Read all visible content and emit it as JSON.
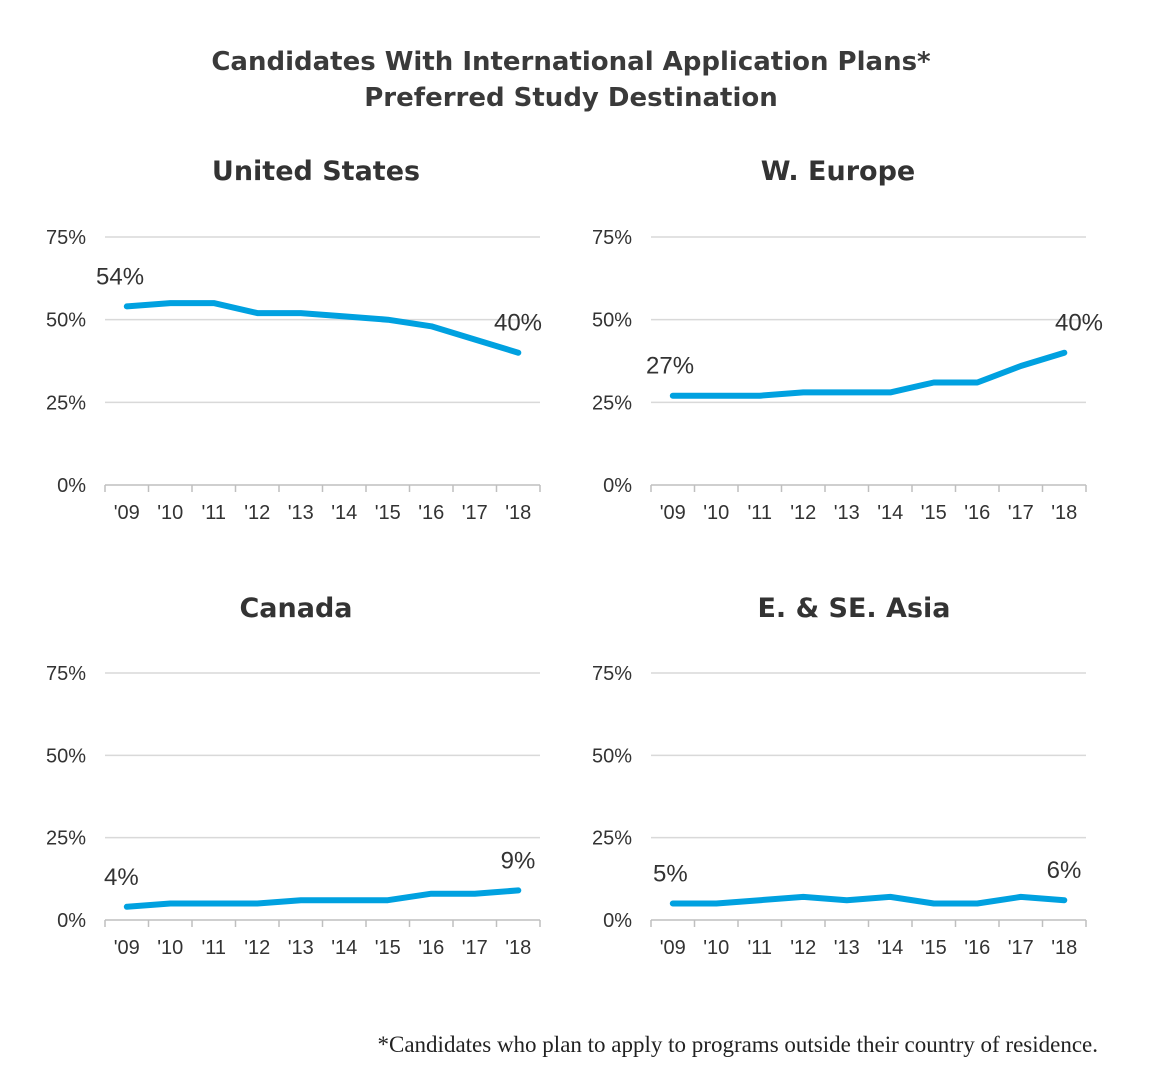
{
  "title": {
    "line1": "Candidates With International Application Plans*",
    "line2": "Preferred Study Destination"
  },
  "footnote": "*Candidates who plan to apply to programs outside their country of residence.",
  "colors": {
    "line": "#00a1e0"
  },
  "chart_data": [
    {
      "type": "line",
      "title": "United States",
      "categories": [
        "'09",
        "'10",
        "'11",
        "'12",
        "'13",
        "'14",
        "'15",
        "'16",
        "'17",
        "'18"
      ],
      "values": [
        54,
        55,
        55,
        52,
        52,
        51,
        50,
        48,
        44,
        40
      ],
      "yticks": [
        "0%",
        "25%",
        "50%",
        "75%"
      ],
      "ylim": [
        0,
        75
      ],
      "grid": true,
      "data_labels": {
        "first": "54%",
        "last": "40%"
      }
    },
    {
      "type": "line",
      "title": "W. Europe",
      "categories": [
        "'09",
        "'10",
        "'11",
        "'12",
        "'13",
        "'14",
        "'15",
        "'16",
        "'17",
        "'18"
      ],
      "values": [
        27,
        27,
        27,
        28,
        28,
        28,
        31,
        31,
        36,
        40
      ],
      "yticks": [
        "0%",
        "25%",
        "50%",
        "75%"
      ],
      "ylim": [
        0,
        75
      ],
      "grid": true,
      "data_labels": {
        "first": "27%",
        "last": "40%"
      }
    },
    {
      "type": "line",
      "title": "Canada",
      "categories": [
        "'09",
        "'10",
        "'11",
        "'12",
        "'13",
        "'14",
        "'15",
        "'16",
        "'17",
        "'18"
      ],
      "values": [
        4,
        5,
        5,
        5,
        6,
        6,
        6,
        8,
        8,
        9
      ],
      "yticks": [
        "0%",
        "25%",
        "50%",
        "75%"
      ],
      "ylim": [
        0,
        75
      ],
      "grid": true,
      "data_labels": {
        "first": "4%",
        "last": "9%"
      }
    },
    {
      "type": "line",
      "title": "E. & SE. Asia",
      "categories": [
        "'09",
        "'10",
        "'11",
        "'12",
        "'13",
        "'14",
        "'15",
        "'16",
        "'17",
        "'18"
      ],
      "values": [
        5,
        5,
        6,
        7,
        6,
        7,
        5,
        5,
        7,
        6
      ],
      "yticks": [
        "0%",
        "25%",
        "50%",
        "75%"
      ],
      "ylim": [
        0,
        75
      ],
      "grid": true,
      "data_labels": {
        "first": "5%",
        "last": "6%"
      }
    }
  ]
}
